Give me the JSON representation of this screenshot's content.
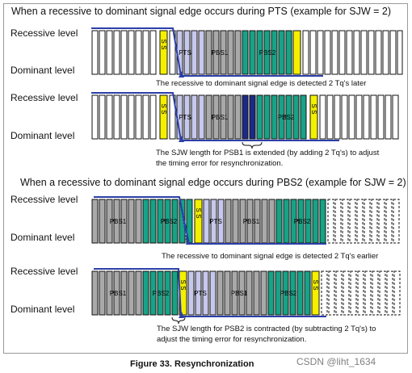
{
  "figure": {
    "caption": "Figure 33. Resynchronization",
    "watermark": "CSDN @liht_1634"
  },
  "levels": {
    "recessive": "Recessive level",
    "dominant": "Dominant level"
  },
  "sections": [
    {
      "heading": "When a recessive to dominant signal edge occurs during PTS (example for SJW = 2)",
      "rows": [
        {
          "note": [
            "The recessive to dominant signal edge is detected 2 Tq's later"
          ]
        },
        {
          "note": [
            "The SJW length for PSB1 is extended (by adding 2 Tq's) to adjust",
            "the timing error for resynchronization."
          ]
        }
      ]
    },
    {
      "heading": "When a recessive to dominant signal edge occurs during PBS2 (example for SJW = 2)",
      "rows": [
        {
          "note": [
            "The recessive to dominant signal edge is detected 2 Tq's earlier"
          ]
        },
        {
          "note": [
            "The SJW length for PSB2 is contracted (by subtracting 2 Tq's) to",
            "adjust the timing error for resynchronization."
          ]
        }
      ]
    }
  ],
  "segments": {
    "ss": "S S",
    "pts": "PTS",
    "pbs1": "PBS1",
    "pbs2": "PBS2"
  },
  "colors": {
    "white_cell": "#ffffff",
    "sync": "#f4f000",
    "pts": "#c6c8ec",
    "pbs1": "#a9a9a9",
    "pbs2": "#16a386",
    "extend": "#1b2a86",
    "signal": "#2b3fa8"
  }
}
